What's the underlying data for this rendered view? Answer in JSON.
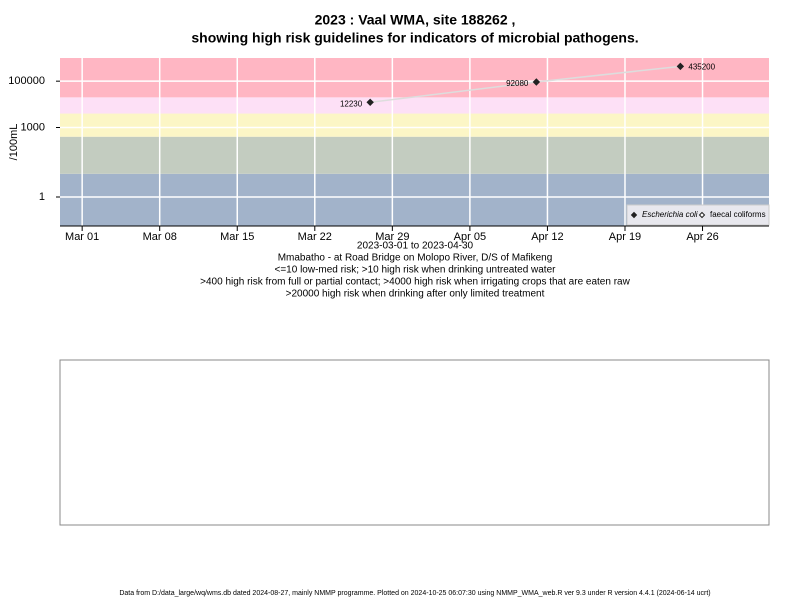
{
  "chart_data": {
    "type": "line",
    "log_y": true,
    "title": "2023 : Vaal WMA, site 188262 ,",
    "subtitle": "showing high risk guidelines for indicators of microbial pathogens.",
    "ylabel": "/100mL",
    "x": [
      "2023-03-27",
      "2023-04-11",
      "2023-04-24"
    ],
    "series": [
      {
        "name": "Escherichia coli",
        "color": "#222222",
        "marker": "filled-diamond",
        "values": [
          12230,
          92080,
          435200
        ]
      },
      {
        "name": "faecal coliforms",
        "color": "#222222",
        "marker": "open-diamond",
        "values": [
          null,
          null,
          null
        ]
      }
    ],
    "line_color": "#dddddd",
    "thresholds": [
      10,
      400,
      4000,
      20000
    ],
    "band_colors": [
      "#a2b3ca",
      "#c3ccc0",
      "#fcf6c6",
      "#fde0f6",
      "#ffb6c3"
    ],
    "xlim": [
      "2023-02-27",
      "2023-05-02"
    ],
    "xticks": [
      {
        "value": "2023-03-01",
        "label": "Mar 01"
      },
      {
        "value": "2023-03-08",
        "label": "Mar 08"
      },
      {
        "value": "2023-03-15",
        "label": "Mar 15"
      },
      {
        "value": "2023-03-22",
        "label": "Mar 22"
      },
      {
        "value": "2023-03-29",
        "label": "Mar 29"
      },
      {
        "value": "2023-04-05",
        "label": "Apr 05"
      },
      {
        "value": "2023-04-12",
        "label": "Apr 12"
      },
      {
        "value": "2023-04-19",
        "label": "Apr 19"
      },
      {
        "value": "2023-04-26",
        "label": "Apr 26"
      }
    ],
    "ylim": [
      0.056,
      1000000
    ],
    "yticks": [
      1,
      1000,
      100000
    ],
    "grid": true,
    "legend": "bottom-right",
    "notes": [
      "2023-03-01 to 2023-04-30",
      "Mmabatho - at Road Bridge on Molopo River, D/S of Mafikeng",
      "<=10 low-med risk; >10 high risk when drinking untreated water",
      ">400 high risk from full or partial contact; >4000 high risk when irrigating crops that are eaten raw",
      ">20000 high risk when drinking after only limited treatment"
    ],
    "footer": "Data from D:/data_large/wq/wms.db dated 2024-08-27, mainly NMMP programme. Plotted on 2024-10-25 06:07:30 using NMMP_WMA_web.R ver 9.3 under R version 4.4.1 (2024-06-14 ucrt)"
  }
}
